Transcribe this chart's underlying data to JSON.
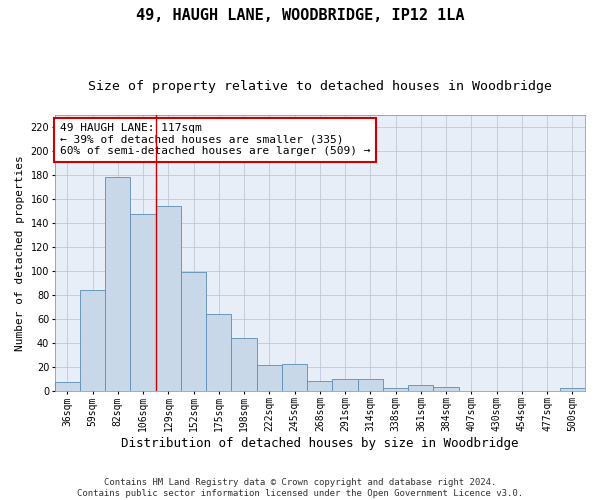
{
  "title": "49, HAUGH LANE, WOODBRIDGE, IP12 1LA",
  "subtitle": "Size of property relative to detached houses in Woodbridge",
  "xlabel": "Distribution of detached houses by size in Woodbridge",
  "ylabel": "Number of detached properties",
  "categories": [
    "36sqm",
    "59sqm",
    "82sqm",
    "106sqm",
    "129sqm",
    "152sqm",
    "175sqm",
    "198sqm",
    "222sqm",
    "245sqm",
    "268sqm",
    "291sqm",
    "314sqm",
    "338sqm",
    "361sqm",
    "384sqm",
    "407sqm",
    "430sqm",
    "454sqm",
    "477sqm",
    "500sqm"
  ],
  "values": [
    7,
    84,
    178,
    147,
    154,
    99,
    64,
    44,
    21,
    22,
    8,
    10,
    10,
    2,
    5,
    3,
    0,
    0,
    0,
    0,
    2
  ],
  "bar_color": "#c8d8e8",
  "bar_edge_color": "#5b8db8",
  "vline_x": 3.5,
  "vline_color": "#cc0000",
  "annotation_text": "49 HAUGH LANE: 117sqm\n← 39% of detached houses are smaller (335)\n60% of semi-detached houses are larger (509) →",
  "annotation_box_color": "#ffffff",
  "annotation_box_edgecolor": "#cc0000",
  "ylim": [
    0,
    230
  ],
  "yticks": [
    0,
    20,
    40,
    60,
    80,
    100,
    120,
    140,
    160,
    180,
    200,
    220
  ],
  "grid_color": "#c0c8d8",
  "background_color": "#e8eef8",
  "footnote": "Contains HM Land Registry data © Crown copyright and database right 2024.\nContains public sector information licensed under the Open Government Licence v3.0.",
  "title_fontsize": 11,
  "subtitle_fontsize": 9.5,
  "xlabel_fontsize": 9,
  "ylabel_fontsize": 8,
  "tick_fontsize": 7,
  "annotation_fontsize": 8,
  "footnote_fontsize": 6.5
}
